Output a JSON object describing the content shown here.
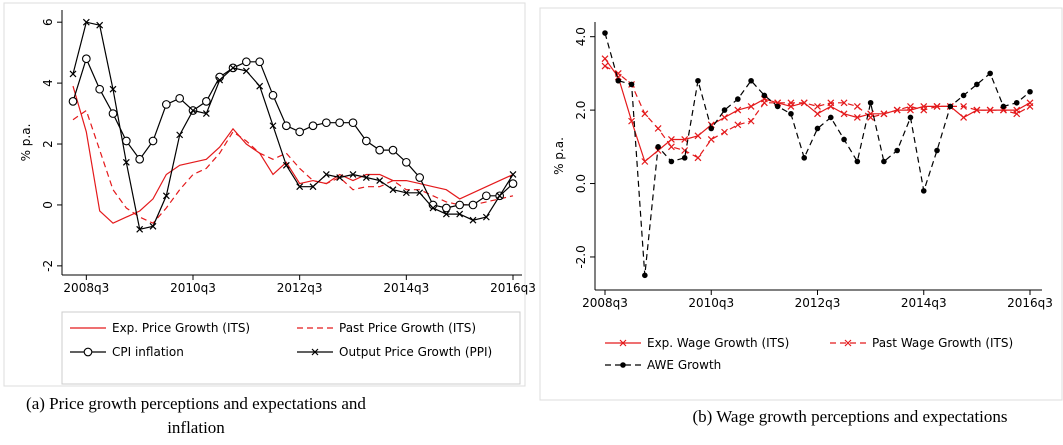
{
  "chart_data": [
    {
      "type": "line",
      "caption": "(a) Price growth perceptions and expectations and inflation",
      "ylabel": "% p.a.",
      "categories": [
        null,
        "2008q3",
        null,
        null,
        null,
        null,
        null,
        null,
        null,
        "2010q3",
        null,
        null,
        null,
        null,
        null,
        null,
        null,
        "2012q3",
        null,
        null,
        null,
        null,
        null,
        null,
        null,
        "2014q3",
        null,
        null,
        null,
        null,
        null,
        null,
        null,
        "2016q3"
      ],
      "ylim": [
        -2.3,
        6.4
      ],
      "yticks": [
        -2,
        0,
        2,
        4,
        6
      ],
      "series": [
        {
          "name": "Exp. Price Growth (ITS)",
          "color": "#e41a1c",
          "dash": false,
          "marker": null,
          "values": [
            3.9,
            2.4,
            -0.2,
            -0.6,
            -0.4,
            -0.2,
            0.2,
            1.0,
            1.3,
            1.4,
            1.5,
            1.9,
            2.5,
            2.0,
            1.7,
            1.0,
            1.4,
            0.7,
            0.8,
            0.7,
            1.0,
            0.8,
            1.0,
            1.0,
            0.8,
            0.8,
            0.7,
            0.6,
            0.5,
            0.2,
            0.4,
            0.6,
            0.8,
            1.0
          ]
        },
        {
          "name": "Past Price Growth (ITS)",
          "color": "#e41a1c",
          "dash": true,
          "marker": null,
          "values": [
            2.8,
            3.1,
            1.8,
            0.5,
            -0.1,
            -0.4,
            -0.6,
            -0.1,
            0.5,
            1.0,
            1.2,
            1.7,
            2.4,
            2.1,
            1.7,
            1.5,
            1.7,
            1.2,
            0.8,
            0.7,
            0.9,
            0.5,
            0.6,
            0.6,
            0.8,
            0.5,
            0.5,
            0.3,
            0.1,
            0.0,
            0.0,
            0.1,
            0.2,
            0.3
          ]
        },
        {
          "name": "CPI inflation",
          "color": "#000000",
          "dash": false,
          "marker": "circle",
          "values": [
            3.4,
            4.8,
            3.8,
            3.0,
            2.1,
            1.5,
            2.1,
            3.3,
            3.5,
            3.1,
            3.4,
            4.2,
            4.5,
            4.7,
            4.7,
            3.6,
            2.6,
            2.4,
            2.6,
            2.7,
            2.7,
            2.7,
            2.1,
            1.8,
            1.8,
            1.4,
            0.9,
            0.0,
            -0.1,
            0.0,
            0.0,
            0.3,
            0.3,
            0.7
          ]
        },
        {
          "name": "Output Price Growth (PPI)",
          "color": "#000000",
          "dash": false,
          "marker": "x",
          "values": [
            4.3,
            6.0,
            5.9,
            3.8,
            1.4,
            -0.8,
            -0.7,
            0.3,
            2.3,
            3.1,
            3.0,
            4.1,
            4.5,
            4.4,
            3.9,
            2.6,
            1.3,
            0.6,
            0.6,
            1.0,
            0.9,
            1.0,
            0.9,
            0.8,
            0.5,
            0.4,
            0.4,
            -0.1,
            -0.3,
            -0.3,
            -0.5,
            -0.4,
            0.3,
            1.0
          ]
        }
      ]
    },
    {
      "type": "line",
      "caption": "(b) Wage growth perceptions and expectations",
      "ylabel": "% p.a.",
      "categories": [
        "2008q3",
        null,
        null,
        null,
        null,
        null,
        null,
        null,
        "2010q3",
        null,
        null,
        null,
        null,
        null,
        null,
        null,
        "2012q3",
        null,
        null,
        null,
        null,
        null,
        null,
        null,
        "2014q3",
        null,
        null,
        null,
        null,
        null,
        null,
        null,
        "2016q3"
      ],
      "ylim": [
        -2.9,
        4.4
      ],
      "yticks": [
        {
          "value": -2,
          "label": "-2.0"
        },
        {
          "value": 0,
          "label": "0.0"
        },
        {
          "value": 2,
          "label": "2.0"
        },
        {
          "value": 4,
          "label": "4.0"
        }
      ],
      "series": [
        {
          "name": "Exp. Wage Growth (ITS)",
          "color": "#e41a1c",
          "dash": false,
          "marker": "x",
          "values": [
            3.4,
            2.9,
            1.7,
            0.6,
            0.9,
            1.2,
            1.2,
            1.3,
            1.6,
            1.8,
            2.0,
            2.1,
            2.3,
            2.2,
            2.1,
            2.2,
            1.9,
            2.1,
            1.9,
            1.8,
            1.9,
            1.9,
            2.0,
            2.0,
            2.1,
            2.1,
            2.1,
            1.8,
            2.0,
            2.0,
            2.0,
            2.0,
            2.2
          ]
        },
        {
          "name": "Past Wage Growth (ITS)",
          "color": "#e41a1c",
          "dash": true,
          "marker": "x",
          "values": [
            3.2,
            3.0,
            2.7,
            1.9,
            1.5,
            1.0,
            0.9,
            0.7,
            1.2,
            1.4,
            1.6,
            1.7,
            2.2,
            2.2,
            2.2,
            2.2,
            2.1,
            2.2,
            2.2,
            2.1,
            1.8,
            1.9,
            2.0,
            2.1,
            2.0,
            2.1,
            2.1,
            2.1,
            2.0,
            2.0,
            2.0,
            1.9,
            2.1
          ]
        },
        {
          "name": "AWE Growth",
          "color": "#000000",
          "dash": true,
          "marker": "dot",
          "values": [
            4.1,
            2.8,
            2.7,
            -2.5,
            1.0,
            0.6,
            0.7,
            2.8,
            1.5,
            2.0,
            2.3,
            2.8,
            2.4,
            2.1,
            1.9,
            0.7,
            1.5,
            1.8,
            1.2,
            0.6,
            2.2,
            0.6,
            0.9,
            1.8,
            -0.2,
            0.9,
            2.1,
            2.4,
            2.7,
            3.0,
            2.1,
            2.2,
            2.5
          ]
        }
      ]
    }
  ]
}
